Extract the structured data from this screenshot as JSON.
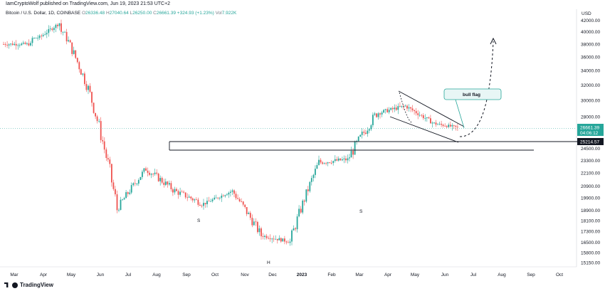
{
  "header": {
    "publisher": "IamCryptoWolf published on TradingView.com, Jun 19, 2023 21:53 UTC+2"
  },
  "symbol_line": {
    "name": "Bitcoin / U.S. Dollar, 1D, COINBASE",
    "open_label": "O",
    "open": "26336.48",
    "high_label": "H",
    "high": "27040.64",
    "low_label": "L",
    "low": "26250.00",
    "close_label": "C",
    "close": "26661.39",
    "change": "+324.93 (+1.23%)",
    "volume_label": "Vol",
    "volume": "7.922K"
  },
  "brand": {
    "name": "TradingView"
  },
  "colors": {
    "up": "#26a69a",
    "down": "#ef5350",
    "price_line": "#26a69a",
    "support": "#131722",
    "annotation_border": "#26a69a",
    "annotation_fill": "#e8f6f5"
  },
  "chart_data": {
    "type": "candlestick",
    "title": "",
    "currency_label": "USD",
    "y_scale": "log",
    "ylim": [
      14900,
      44000
    ],
    "x_ticks": [
      "Mar",
      "Apr",
      "May",
      "Jun",
      "Jul",
      "Aug",
      "Sep",
      "Oct",
      "Nov",
      "Dec",
      "2023",
      "Feb",
      "Mar",
      "Apr",
      "May",
      "Jun",
      "Jul",
      "Aug",
      "Sep",
      "Oct"
    ],
    "y_ticks": [
      "42000.00",
      "40000.00",
      "38000.00",
      "36000.00",
      "34000.00",
      "32000.00",
      "30000.00",
      "28000.00",
      "24500.00",
      "23300.00",
      "22100.00",
      "20900.00",
      "19900.00",
      "18900.00",
      "18100.00",
      "17300.00",
      "16500.00",
      "15800.00",
      "15150.00"
    ],
    "current_price": {
      "value": "26661.39",
      "countdown": "04:06:12"
    },
    "support_price": {
      "value": "25214.57"
    },
    "monthly_path": [
      {
        "month": "Mar 2022",
        "close": 38000,
        "high": 41000,
        "low": 37000
      },
      {
        "month": "Apr 2022",
        "close": 41500,
        "high": 44000,
        "low": 39000
      },
      {
        "month": "May 2022",
        "close": 31500,
        "high": 40000,
        "low": 26700
      },
      {
        "month": "Jun 2022",
        "close": 19000,
        "high": 31800,
        "low": 17600
      },
      {
        "month": "Jul 2022",
        "close": 22500,
        "high": 24200,
        "low": 18800
      },
      {
        "month": "Aug 2022",
        "close": 20500,
        "high": 25200,
        "low": 19600
      },
      {
        "month": "Sep 2022",
        "close": 19400,
        "high": 22700,
        "low": 18200
      },
      {
        "month": "Oct 2022",
        "close": 20500,
        "high": 21000,
        "low": 18900
      },
      {
        "month": "Nov 2022",
        "close": 17000,
        "high": 21500,
        "low": 15500
      },
      {
        "month": "Dec 2022",
        "close": 16550,
        "high": 18300,
        "low": 16300
      },
      {
        "month": "Jan 2023",
        "close": 23100,
        "high": 23900,
        "low": 16500
      },
      {
        "month": "Feb 2023",
        "close": 23400,
        "high": 25200,
        "low": 21500
      },
      {
        "month": "Mar 2023",
        "close": 28400,
        "high": 29200,
        "low": 19600
      },
      {
        "month": "Apr 2023",
        "close": 29300,
        "high": 31000,
        "low": 27000
      },
      {
        "month": "May 2023",
        "close": 27200,
        "high": 29800,
        "low": 25800
      },
      {
        "month": "Jun 2023",
        "close": 26661.39,
        "high": 27500,
        "low": 24800
      }
    ],
    "annotations": [
      {
        "label": "S",
        "near": "Aug 2022"
      },
      {
        "label": "H",
        "near": "Nov 2022"
      },
      {
        "label": "S",
        "near": "Mar 2023"
      },
      {
        "label": "bull flag",
        "near": "Jun 2023"
      }
    ]
  }
}
